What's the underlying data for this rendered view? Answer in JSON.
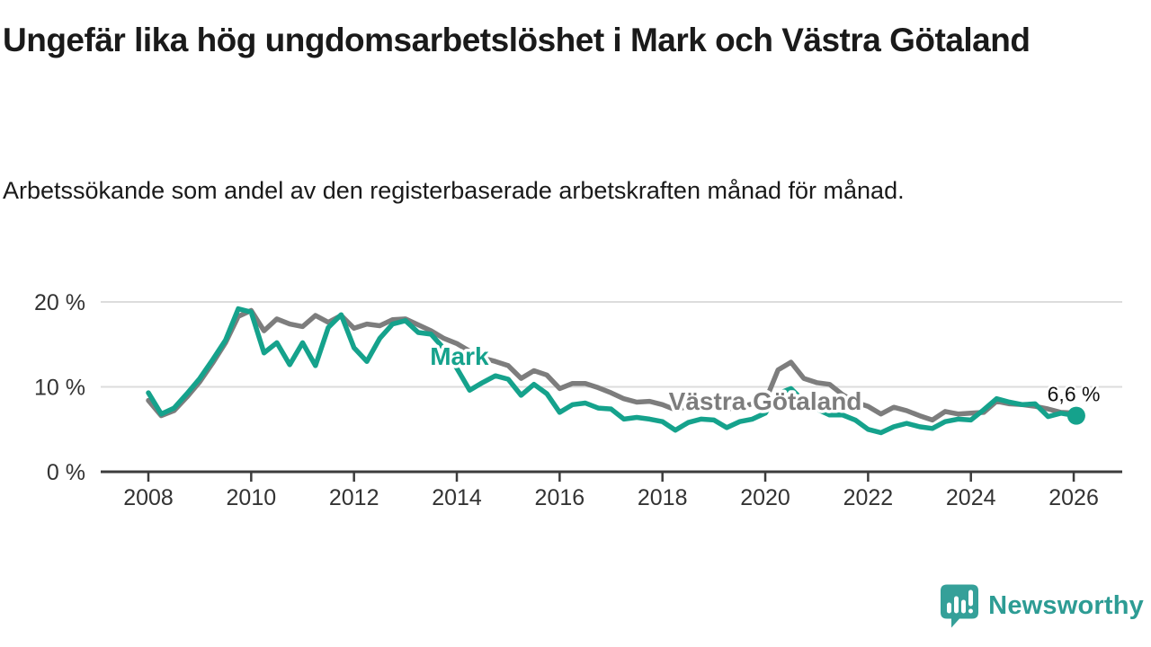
{
  "header": {
    "title": "Ungefär lika hög ungdomsarbetslöshet i Mark och Västra Götaland",
    "subtitle": "Arbetssökande som andel av den registerbaserade arbetskraften månad för månad."
  },
  "footer": {
    "brand": "Newsworthy",
    "brand_color": "#2d9c94",
    "logo_icon": "speech-bubble-bar-chart-icon",
    "logo_color": "#35a099"
  },
  "chart_data": {
    "type": "line",
    "title": "Ungefär lika hög ungdomsarbetslöshet i Mark och Västra Götaland",
    "subtitle": "Arbetssökande som andel av den registerbaserade arbetskraften månad för månad.",
    "grid": "horizontal",
    "x_axis": {
      "ticks": [
        2008,
        2010,
        2012,
        2014,
        2016,
        2018,
        2020,
        2022,
        2024,
        2026
      ],
      "range": [
        2007.6,
        2026.9
      ]
    },
    "y_axis": {
      "ticks": [
        {
          "value": 0,
          "label": "0 %"
        },
        {
          "value": 10,
          "label": "10 %"
        },
        {
          "value": 20,
          "label": "20 %"
        }
      ],
      "range": [
        0,
        22
      ],
      "unit": "%"
    },
    "colors": {
      "mark": "#15a28c",
      "vastra_gotaland": "#7d7d7d",
      "gridline": "#dcdcdc",
      "axis": "#3c3c3c"
    },
    "series": [
      {
        "name": "Västra Götaland",
        "color": "#7d7d7d",
        "label_at": [
          2020.0,
          7.3
        ],
        "points": [
          [
            2008.0,
            8.4
          ],
          [
            2008.25,
            6.6
          ],
          [
            2008.5,
            7.2
          ],
          [
            2008.75,
            8.8
          ],
          [
            2009.0,
            10.6
          ],
          [
            2009.25,
            12.8
          ],
          [
            2009.5,
            15.2
          ],
          [
            2009.75,
            18.3
          ],
          [
            2010.0,
            19.0
          ],
          [
            2010.25,
            16.6
          ],
          [
            2010.5,
            18.0
          ],
          [
            2010.75,
            17.4
          ],
          [
            2011.0,
            17.1
          ],
          [
            2011.25,
            18.4
          ],
          [
            2011.5,
            17.6
          ],
          [
            2011.75,
            18.4
          ],
          [
            2012.0,
            16.9
          ],
          [
            2012.25,
            17.4
          ],
          [
            2012.5,
            17.2
          ],
          [
            2012.75,
            17.9
          ],
          [
            2013.0,
            18.0
          ],
          [
            2013.25,
            17.3
          ],
          [
            2013.5,
            16.6
          ],
          [
            2013.75,
            15.7
          ],
          [
            2014.0,
            15.1
          ],
          [
            2014.25,
            14.2
          ],
          [
            2014.5,
            13.4
          ],
          [
            2014.75,
            13.0
          ],
          [
            2015.0,
            12.5
          ],
          [
            2015.25,
            11.0
          ],
          [
            2015.5,
            11.9
          ],
          [
            2015.75,
            11.4
          ],
          [
            2016.0,
            9.8
          ],
          [
            2016.25,
            10.4
          ],
          [
            2016.5,
            10.4
          ],
          [
            2016.75,
            9.9
          ],
          [
            2017.0,
            9.3
          ],
          [
            2017.25,
            8.6
          ],
          [
            2017.5,
            8.2
          ],
          [
            2017.75,
            8.3
          ],
          [
            2018.0,
            7.9
          ],
          [
            2018.25,
            7.3
          ],
          [
            2018.5,
            7.7
          ],
          [
            2018.75,
            7.9
          ],
          [
            2019.0,
            7.8
          ],
          [
            2019.25,
            7.4
          ],
          [
            2019.5,
            7.6
          ],
          [
            2019.75,
            8.0
          ],
          [
            2020.0,
            8.3
          ],
          [
            2020.25,
            12.0
          ],
          [
            2020.5,
            12.9
          ],
          [
            2020.75,
            11.0
          ],
          [
            2021.0,
            10.5
          ],
          [
            2021.25,
            10.3
          ],
          [
            2021.5,
            9.1
          ],
          [
            2021.75,
            8.2
          ],
          [
            2022.0,
            7.7
          ],
          [
            2022.25,
            6.8
          ],
          [
            2022.5,
            7.6
          ],
          [
            2022.75,
            7.2
          ],
          [
            2023.0,
            6.6
          ],
          [
            2023.25,
            6.1
          ],
          [
            2023.5,
            7.1
          ],
          [
            2023.75,
            6.8
          ],
          [
            2024.0,
            6.9
          ],
          [
            2024.25,
            7.0
          ],
          [
            2024.5,
            8.3
          ],
          [
            2024.75,
            8.0
          ],
          [
            2025.0,
            7.9
          ],
          [
            2025.25,
            7.7
          ],
          [
            2025.5,
            7.4
          ],
          [
            2025.75,
            7.0
          ],
          [
            2026.05,
            6.9
          ]
        ]
      },
      {
        "name": "Mark",
        "color": "#15a28c",
        "label_at": [
          2014.05,
          12.6
        ],
        "end_dot": [
          2026.05,
          6.6
        ],
        "end_label": "6,6 %",
        "end_label_at": [
          2026.0,
          8.3
        ],
        "points": [
          [
            2008.0,
            9.3
          ],
          [
            2008.25,
            6.8
          ],
          [
            2008.5,
            7.5
          ],
          [
            2008.75,
            9.2
          ],
          [
            2009.0,
            11.0
          ],
          [
            2009.25,
            13.2
          ],
          [
            2009.5,
            15.5
          ],
          [
            2009.75,
            19.2
          ],
          [
            2010.0,
            18.8
          ],
          [
            2010.25,
            14.0
          ],
          [
            2010.5,
            15.2
          ],
          [
            2010.75,
            12.6
          ],
          [
            2011.0,
            15.2
          ],
          [
            2011.25,
            12.5
          ],
          [
            2011.5,
            17.0
          ],
          [
            2011.75,
            18.5
          ],
          [
            2012.0,
            14.6
          ],
          [
            2012.25,
            13.0
          ],
          [
            2012.5,
            15.7
          ],
          [
            2012.75,
            17.4
          ],
          [
            2013.0,
            17.8
          ],
          [
            2013.25,
            16.4
          ],
          [
            2013.5,
            16.2
          ],
          [
            2013.75,
            14.5
          ],
          [
            2014.0,
            12.2
          ],
          [
            2014.25,
            9.6
          ],
          [
            2014.5,
            10.5
          ],
          [
            2014.75,
            11.3
          ],
          [
            2015.0,
            10.9
          ],
          [
            2015.25,
            9.0
          ],
          [
            2015.5,
            10.3
          ],
          [
            2015.75,
            9.2
          ],
          [
            2016.0,
            7.0
          ],
          [
            2016.25,
            7.9
          ],
          [
            2016.5,
            8.1
          ],
          [
            2016.75,
            7.5
          ],
          [
            2017.0,
            7.4
          ],
          [
            2017.25,
            6.2
          ],
          [
            2017.5,
            6.4
          ],
          [
            2017.75,
            6.2
          ],
          [
            2018.0,
            5.9
          ],
          [
            2018.25,
            4.9
          ],
          [
            2018.5,
            5.8
          ],
          [
            2018.75,
            6.2
          ],
          [
            2019.0,
            6.1
          ],
          [
            2019.25,
            5.2
          ],
          [
            2019.5,
            5.9
          ],
          [
            2019.75,
            6.2
          ],
          [
            2020.0,
            6.9
          ],
          [
            2020.25,
            9.2
          ],
          [
            2020.5,
            9.8
          ],
          [
            2020.75,
            8.3
          ],
          [
            2021.0,
            7.4
          ],
          [
            2021.25,
            6.7
          ],
          [
            2021.5,
            6.7
          ],
          [
            2021.75,
            6.1
          ],
          [
            2022.0,
            5.0
          ],
          [
            2022.25,
            4.6
          ],
          [
            2022.5,
            5.3
          ],
          [
            2022.75,
            5.7
          ],
          [
            2023.0,
            5.3
          ],
          [
            2023.25,
            5.1
          ],
          [
            2023.5,
            5.9
          ],
          [
            2023.75,
            6.2
          ],
          [
            2024.0,
            6.1
          ],
          [
            2024.25,
            7.3
          ],
          [
            2024.5,
            8.6
          ],
          [
            2024.75,
            8.2
          ],
          [
            2025.0,
            7.9
          ],
          [
            2025.25,
            8.0
          ],
          [
            2025.5,
            6.5
          ],
          [
            2025.75,
            6.9
          ],
          [
            2026.05,
            6.6
          ]
        ]
      }
    ]
  }
}
